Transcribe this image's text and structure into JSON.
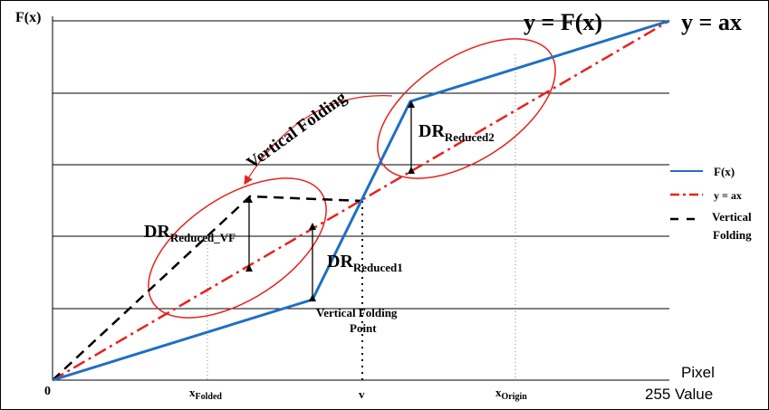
{
  "axes": {
    "y_label": "F(x)",
    "origin_label": "0",
    "x_axis_label_line1": "Pixel",
    "x_axis_label_line2": "Value",
    "x_max_label": "255"
  },
  "tick_labels": {
    "x_folded_main": "x",
    "x_folded_sub": "Folded",
    "v": "v",
    "x_origin_main": "x",
    "x_origin_sub": "Origin"
  },
  "titles": {
    "fx_equation": "y = F(x)",
    "ax_equation": "y = ax"
  },
  "annotations": {
    "dr_main": "DR",
    "dr_reduced2_sub": "Reduced2",
    "dr_reduced1_sub": "Reduced1",
    "dr_reduced_vf_sub": "Reduced_VF",
    "vertical_folding_curve_text": "Vertical Folding",
    "vf_point_line1": "Vertical Folding",
    "vf_point_line2": "Point"
  },
  "legend": {
    "items": [
      {
        "label": "F(x)",
        "style": "solid",
        "color": "#1f6fc4"
      },
      {
        "label": "y = ax",
        "style": "dash-dot",
        "color": "#e8211d"
      },
      {
        "label_line1": "Vertical",
        "label_line2": "Folding",
        "style": "dashed",
        "color": "#000000"
      }
    ]
  },
  "colors": {
    "fx_line": "#1f6fc4",
    "ax_line": "#e8211d",
    "folding_line": "#000000",
    "ellipse": "#e8211d",
    "grid": "#000000"
  }
}
